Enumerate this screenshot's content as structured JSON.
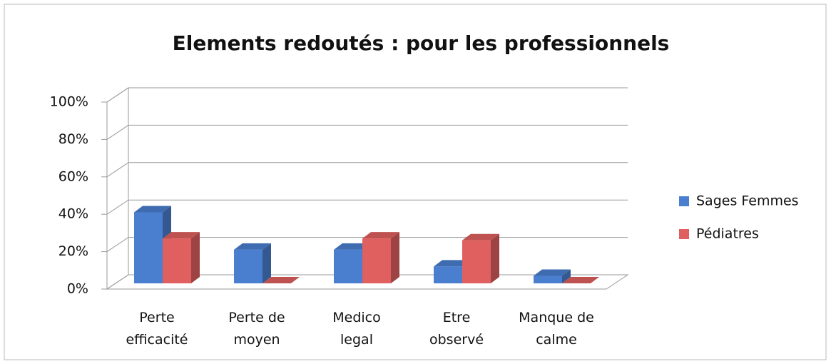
{
  "chart_data": {
    "type": "bar3d",
    "title": "Elements redoutés : pour les professionnels",
    "categories": [
      [
        "Perte",
        "efficacité"
      ],
      [
        "Perte de",
        "moyen"
      ],
      [
        "Medico",
        "legal"
      ],
      [
        "Etre",
        "observé"
      ],
      [
        "Manque de",
        "calme"
      ]
    ],
    "series": [
      {
        "name": "Sages Femmes",
        "color": "#4a7fcf",
        "values": [
          38,
          18,
          18,
          9,
          4
        ]
      },
      {
        "name": "Pédiatres",
        "color": "#e0605f",
        "values": [
          24,
          0,
          24,
          23,
          0
        ]
      }
    ],
    "ylim": [
      0,
      100
    ],
    "yticks": [
      {
        "value": 0,
        "label": "0%"
      },
      {
        "value": 20,
        "label": "20%"
      },
      {
        "value": 40,
        "label": "40%"
      },
      {
        "value": 60,
        "label": "60%"
      },
      {
        "value": 80,
        "label": "80%"
      },
      {
        "value": 100,
        "label": "100%"
      }
    ],
    "grid": true,
    "legend": "right"
  }
}
